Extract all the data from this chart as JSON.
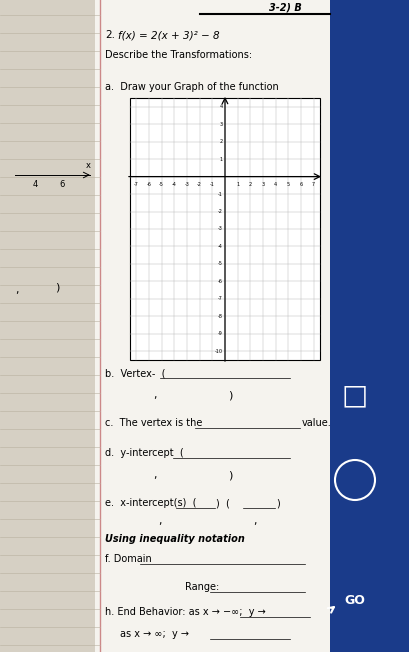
{
  "title_number": "2.",
  "function_text": "f(x) = 2(x + 3)² − 8",
  "describe_text": "Describe the Transformations:",
  "part_a": "a.  Draw your Graph of the function",
  "part_b": "b.  Vertex-  (",
  "part_b_comma": ",",
  "part_b_close": ")",
  "part_c": "c.  The vertex is the",
  "part_c2": "value.",
  "part_d": "d.  y-intercept  (",
  "part_d_comma": ",",
  "part_d_close": ")",
  "part_e": "e.  x-intercept(s)  (",
  "part_e_comma": ",",
  "part_e_close1": ")  (",
  "part_e_comma2": ",",
  "part_e_close2": ")",
  "using_text": "Using inequality notation",
  "part_f": "f. Domain",
  "part_h": "h. End Behavior: as x → −∞;  y →",
  "part_h2": "as x → ∞;  y →",
  "range_text": "Range:",
  "x_lim": [
    -7.5,
    7.5
  ],
  "y_lim": [
    -10.5,
    4.5
  ],
  "bg_color": "#d6d0c4",
  "paper_color": "#f5f3ee",
  "blue_color": "#1a3b8a",
  "grid_color": "#bbbbbb",
  "axis_color": "#222222"
}
